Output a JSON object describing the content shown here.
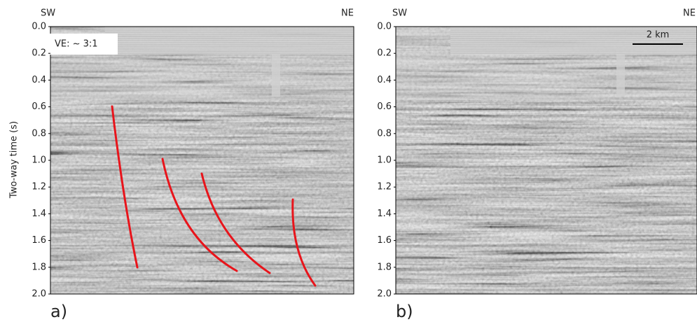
{
  "y_axis": {
    "title": "Two-way time (s)",
    "ticks": [
      "0.0",
      "0.2",
      "0.4",
      "0.6",
      "0.8",
      "1.0",
      "1.2",
      "1.4",
      "1.6",
      "1.8",
      "2.0"
    ]
  },
  "panels": [
    {
      "label": "a)",
      "left_label": "SW",
      "right_label": "NE",
      "annotation": "VE: ~ 3:1"
    },
    {
      "label": "b)",
      "left_label": "SW",
      "right_label": "NE",
      "scale_bar": "2 km"
    }
  ]
}
